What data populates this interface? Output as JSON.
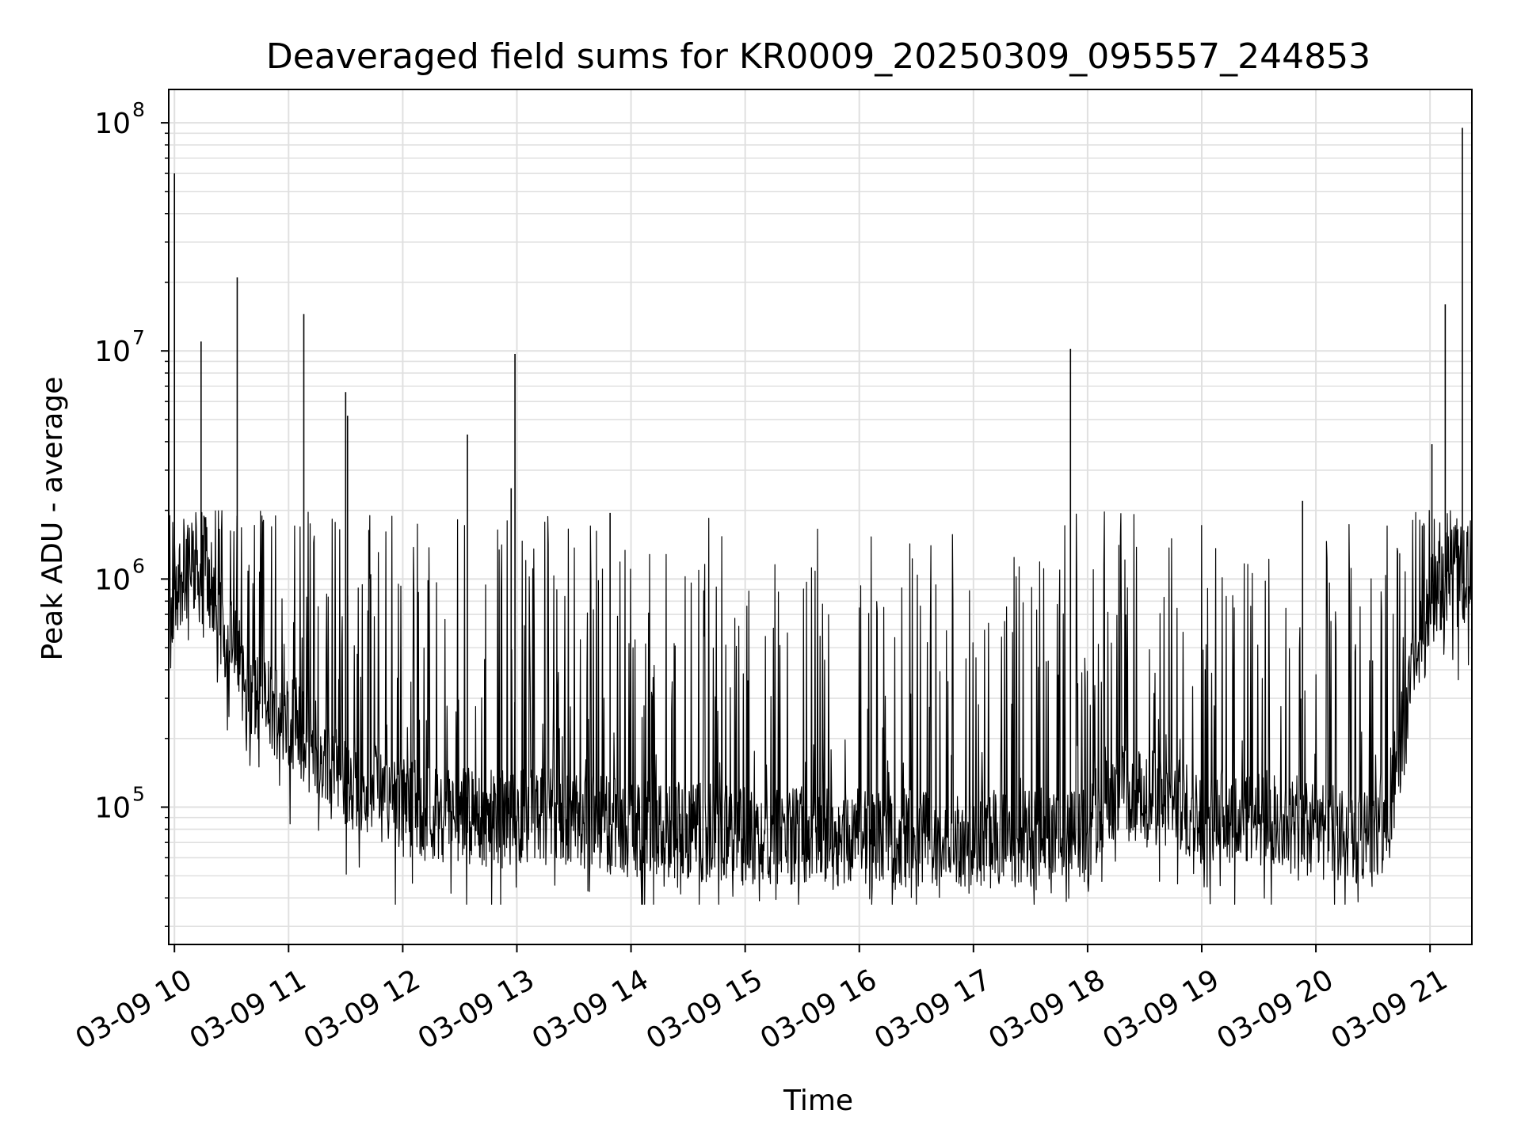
{
  "chart_data": {
    "type": "line",
    "title": "Deaveraged field sums for KR0009_20250309_095557_244853",
    "xlabel": "Time",
    "ylabel": "Peak ADU - average",
    "yscale": "log",
    "grid": true,
    "grid_minor": true,
    "line_color": "#000000",
    "grid_color": "#e0e0e0",
    "xlim": [
      "03-09 09:57",
      "03-09 21:22"
    ],
    "ylim": [
      25000,
      140000000
    ],
    "x_ticks": [
      "03-09 10",
      "03-09 11",
      "03-09 12",
      "03-09 13",
      "03-09 14",
      "03-09 15",
      "03-09 16",
      "03-09 17",
      "03-09 18",
      "03-09 19",
      "03-09 20",
      "03-09 21"
    ],
    "x_tick_times": [
      "03-09 10:00",
      "03-09 11:00",
      "03-09 12:00",
      "03-09 13:00",
      "03-09 14:00",
      "03-09 15:00",
      "03-09 16:00",
      "03-09 17:00",
      "03-09 18:00",
      "03-09 19:00",
      "03-09 20:00",
      "03-09 21:00"
    ],
    "y_ticks": [
      {
        "value": 100000,
        "base": "10",
        "exp": "5"
      },
      {
        "value": 1000000,
        "base": "10",
        "exp": "6"
      },
      {
        "value": 10000000,
        "base": "10",
        "exp": "7"
      },
      {
        "value": 100000000,
        "base": "10",
        "exp": "8"
      }
    ],
    "series": [
      {
        "x": [
          "03-09 09:57",
          "03-09 10:00",
          "03-09 10:05",
          "03-09 10:10",
          "03-09 10:15",
          "03-09 10:20",
          "03-09 10:25",
          "03-09 10:30",
          "03-09 10:35",
          "03-09 10:40",
          "03-09 10:50",
          "03-09 11:00",
          "03-09 11:10",
          "03-09 11:20",
          "03-09 11:30",
          "03-09 11:45",
          "03-09 12:00",
          "03-09 12:15",
          "03-09 12:30",
          "03-09 12:45",
          "03-09 13:00",
          "03-09 13:15",
          "03-09 13:30",
          "03-09 13:45",
          "03-09 14:00",
          "03-09 14:30",
          "03-09 15:00",
          "03-09 15:30",
          "03-09 16:00",
          "03-09 16:30",
          "03-09 17:00",
          "03-09 17:30",
          "03-09 18:00",
          "03-09 18:10",
          "03-09 18:30",
          "03-09 19:00",
          "03-09 19:30",
          "03-09 20:00",
          "03-09 20:30",
          "03-09 20:40",
          "03-09 20:50",
          "03-09 21:00",
          "03-09 21:10",
          "03-09 21:20",
          "03-09 21:22"
        ],
        "y": [
          400000,
          900000,
          1100000,
          1100000,
          1000000,
          900000,
          600000,
          500000,
          400000,
          300000,
          280000,
          250000,
          200000,
          160000,
          140000,
          120000,
          100000,
          95000,
          92000,
          88000,
          90000,
          92000,
          88000,
          85000,
          80000,
          78000,
          76000,
          75000,
          74000,
          73000,
          72000,
          74000,
          75000,
          120000,
          110000,
          95000,
          90000,
          80000,
          70000,
          120000,
          350000,
          750000,
          1100000,
          900000,
          650000
        ],
        "peaks": [
          {
            "x": "03-09 10:00",
            "y": 60000000
          },
          {
            "x": "03-09 10:14",
            "y": 11000000
          },
          {
            "x": "03-09 10:33",
            "y": 21000000
          },
          {
            "x": "03-09 11:08",
            "y": 14500000
          },
          {
            "x": "03-09 11:30",
            "y": 6600000
          },
          {
            "x": "03-09 11:31",
            "y": 5200000
          },
          {
            "x": "03-09 12:34",
            "y": 4300000
          },
          {
            "x": "03-09 12:59",
            "y": 9700000
          },
          {
            "x": "03-09 12:57",
            "y": 2500000
          },
          {
            "x": "03-09 13:49",
            "y": 1950000
          },
          {
            "x": "03-09 17:51",
            "y": 10200000
          },
          {
            "x": "03-09 19:53",
            "y": 2200000
          },
          {
            "x": "03-09 21:01",
            "y": 3900000
          },
          {
            "x": "03-09 21:08",
            "y": 16000000
          },
          {
            "x": "03-09 21:17",
            "y": 95000000
          }
        ]
      }
    ]
  }
}
